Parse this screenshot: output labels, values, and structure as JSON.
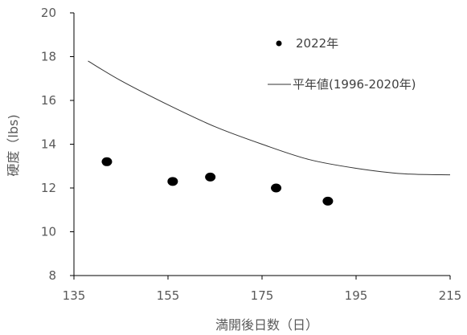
{
  "chart_data": {
    "type": "scatter",
    "xlabel": "満開後日数（日）",
    "ylabel": "硬度（lbs)",
    "xlim": [
      135,
      215
    ],
    "ylim": [
      8,
      20
    ],
    "x_ticks": [
      135,
      155,
      175,
      195,
      215
    ],
    "y_ticks": [
      8,
      10,
      12,
      14,
      16,
      18,
      20
    ],
    "grid": false,
    "legend_position": "top-right",
    "series": [
      {
        "name": "2022年",
        "kind": "scatter",
        "color": "#000000",
        "x": [
          142,
          156,
          164,
          178,
          189
        ],
        "y": [
          13.2,
          12.3,
          12.5,
          12.0,
          11.4
        ]
      },
      {
        "name": "平年値(1996-2020年)",
        "kind": "line",
        "color": "#333333",
        "x": [
          138,
          145,
          155,
          165,
          175,
          185,
          195,
          205,
          215
        ],
        "y": [
          17.8,
          16.9,
          15.8,
          14.8,
          14.0,
          13.3,
          12.9,
          12.65,
          12.6
        ]
      }
    ]
  }
}
